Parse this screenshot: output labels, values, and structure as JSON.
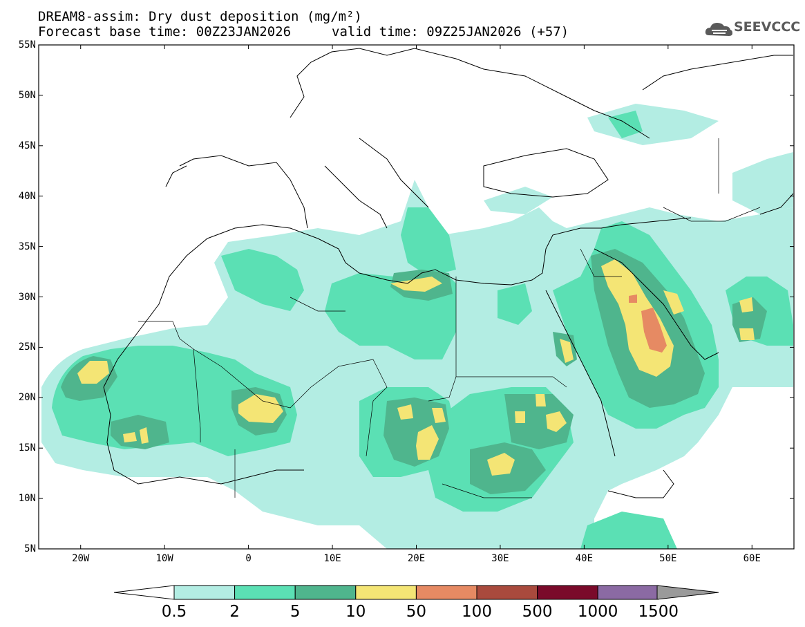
{
  "title": {
    "line1": "DREAM8-assim: Dry dust deposition (mg/m²)",
    "line2a": "Forecast base time: 00Z23JAN2026",
    "line2b": "valid time: 09Z25JAN2026 (+57)"
  },
  "logo": {
    "text": "SEEVCCC",
    "icon": "cloud-icon"
  },
  "map": {
    "lon_range": [
      -25,
      65
    ],
    "lat_range": [
      5,
      55
    ],
    "lat_ticks": [
      "55N",
      "50N",
      "45N",
      "40N",
      "35N",
      "30N",
      "25N",
      "20N",
      "15N",
      "10N",
      "5N"
    ],
    "lon_ticks": [
      "20W",
      "10W",
      "0",
      "10E",
      "20E",
      "30E",
      "40E",
      "50E",
      "60E"
    ]
  },
  "colorbar": {
    "labels": [
      "0.5",
      "2",
      "5",
      "10",
      "50",
      "100",
      "500",
      "1000",
      "1500"
    ],
    "colors": [
      "#b3ede3",
      "#5be0b4",
      "#4fb58d",
      "#f4e575",
      "#e68a63",
      "#a94a3d",
      "#7a0a2a",
      "#8b6aa3",
      "#9a9a9a"
    ]
  }
}
